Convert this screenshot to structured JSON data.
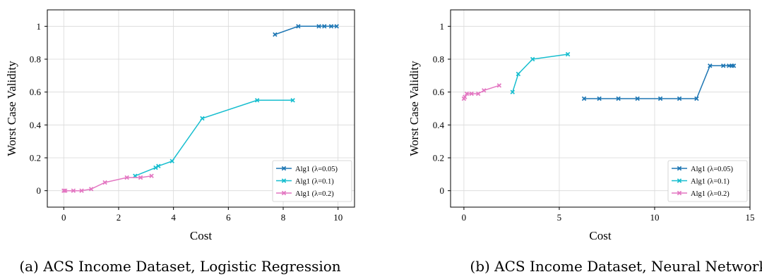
{
  "chart_data": [
    {
      "type": "line",
      "xlabel": "Cost",
      "ylabel": "Worst Case Validity",
      "xlim": [
        -0.6,
        10.6
      ],
      "ylim": [
        -0.1,
        1.1
      ],
      "xticks": [
        0,
        2,
        4,
        6,
        8,
        10
      ],
      "yticks": [
        0,
        0.2,
        0.4,
        0.6,
        0.8,
        1
      ],
      "xtick_labels": [
        "0",
        "2",
        "4",
        "6",
        "8",
        "10"
      ],
      "ytick_labels": [
        "0",
        "0.2",
        "0.4",
        "0.6",
        "0.8",
        "1"
      ],
      "grid": true,
      "legend_position": "bottom-right",
      "caption": "(a) ACS Income Dataset, Logistic Regression",
      "series": [
        {
          "name": "Alg1 (λ=0.05)",
          "color": "#1f77b4",
          "x": [
            7.7,
            8.55,
            9.3,
            9.5,
            9.75,
            9.95
          ],
          "y": [
            0.95,
            1.0,
            1.0,
            1.0,
            1.0,
            1.0
          ]
        },
        {
          "name": "Alg1 (λ=0.1)",
          "color": "#17becf",
          "x": [
            2.6,
            3.35,
            3.45,
            3.95,
            5.05,
            7.05,
            8.35
          ],
          "y": [
            0.09,
            0.14,
            0.15,
            0.18,
            0.44,
            0.55,
            0.55
          ]
        },
        {
          "name": "Alg1 (λ=0.2)",
          "color": "#e377c2",
          "x": [
            0.0,
            0.05,
            0.35,
            0.65,
            1.0,
            1.5,
            2.3,
            2.8,
            3.2
          ],
          "y": [
            0.0,
            0.0,
            0.0,
            0.0,
            0.01,
            0.05,
            0.08,
            0.08,
            0.09
          ]
        }
      ]
    },
    {
      "type": "line",
      "xlabel": "Cost",
      "ylabel": "Worst Case Validity",
      "xlim": [
        -0.7,
        15
      ],
      "ylim": [
        -0.1,
        1.1
      ],
      "xticks": [
        0,
        5,
        10,
        15
      ],
      "yticks": [
        0,
        0.2,
        0.4,
        0.6,
        0.8,
        1
      ],
      "xtick_labels": [
        "0",
        "5",
        "10",
        "15"
      ],
      "ytick_labels": [
        "0",
        "0.2",
        "0.4",
        "0.6",
        "0.8",
        "1"
      ],
      "grid": true,
      "legend_position": "bottom-right",
      "caption": "(b) ACS Income Dataset, Neural Network",
      "series": [
        {
          "name": "Alg1 (λ=0.05)",
          "color": "#1f77b4",
          "x": [
            6.3,
            7.1,
            8.1,
            9.1,
            10.3,
            11.3,
            12.2,
            12.9,
            13.6,
            13.9,
            14.05,
            14.15
          ],
          "y": [
            0.56,
            0.56,
            0.56,
            0.56,
            0.56,
            0.56,
            0.56,
            0.76,
            0.76,
            0.76,
            0.76,
            0.76
          ]
        },
        {
          "name": "Alg1 (λ=0.1)",
          "color": "#17becf",
          "x": [
            2.55,
            2.85,
            3.6,
            5.45
          ],
          "y": [
            0.6,
            0.71,
            0.8,
            0.83
          ]
        },
        {
          "name": "Alg1 (λ=0.2)",
          "color": "#e377c2",
          "x": [
            0.0,
            0.05,
            0.15,
            0.4,
            0.75,
            1.05,
            1.85
          ],
          "y": [
            0.56,
            0.57,
            0.59,
            0.59,
            0.59,
            0.61,
            0.64
          ]
        }
      ]
    }
  ]
}
